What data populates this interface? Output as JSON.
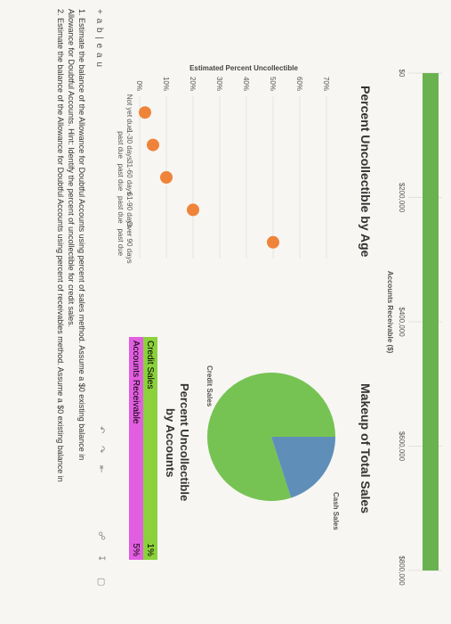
{
  "bar_chart": {
    "x_ticks": [
      "$0",
      "$200,000",
      "$400,000",
      "$600,000",
      "$800,000"
    ],
    "x_label": "Accounts Receivable ($)"
  },
  "age_chart": {
    "title": "Percent Uncollectible by Age",
    "y_label": "Estimated Percent Uncollectible",
    "y_ticks": [
      "0%",
      "10%",
      "20%",
      "30%",
      "40%",
      "50%",
      "60%",
      "70%"
    ],
    "categories": [
      [
        "Not yet due",
        ""
      ],
      [
        "1-30 days",
        "past due"
      ],
      [
        "31-60 days",
        "past due"
      ],
      [
        "61-90 days",
        "past due"
      ],
      [
        "Over 90 days",
        "past due"
      ]
    ]
  },
  "pie_chart": {
    "title": "Makeup of Total Sales",
    "labels": [
      "Credit Sales",
      "Cash Sales"
    ]
  },
  "legend": {
    "title_line1": "Percent Uncollectible",
    "title_line2": "by Accounts",
    "rows": [
      {
        "label": "Credit Sales",
        "value": "1%",
        "color": "#8bd13c"
      },
      {
        "label": "Accounts Receivable",
        "value": "5%",
        "color": "#e25ee0"
      }
    ]
  },
  "logo": "+ a b | e a u",
  "questions": [
    "1. Estimate the balance of the Allowance for Doubtful Accounts using percent of sales method. Assume a $0 existing balance in",
    "Allowance for Doubtful Accounts. Hint: Identify the percent of uncollectible for credit sales.",
    "2. Estimate the balance of the Allowance for Doubtful Accounts using percent of receivables method. Assume a $0 existing balance in"
  ],
  "chart_data": [
    {
      "type": "bar",
      "categories": [
        "Accounts Receivable"
      ],
      "values": [
        800000
      ],
      "xlabel": "Accounts Receivable ($)",
      "xlim": [
        0,
        800000
      ],
      "color": "#6ab24f"
    },
    {
      "type": "scatter",
      "title": "Percent Uncollectible by Age",
      "ylabel": "Estimated Percent Uncollectible",
      "categories": [
        "Not yet due",
        "1-30 days past due",
        "31-60 days past due",
        "61-90 days past due",
        "Over 90 days past due"
      ],
      "values": [
        2,
        5,
        10,
        20,
        50
      ],
      "ylim": [
        0,
        70
      ],
      "color": "#f0833a"
    },
    {
      "type": "pie",
      "title": "Makeup of Total Sales",
      "categories": [
        "Credit Sales",
        "Cash Sales"
      ],
      "values": [
        80,
        20
      ],
      "colors": [
        "#76c353",
        "#5f8fb8"
      ]
    }
  ]
}
